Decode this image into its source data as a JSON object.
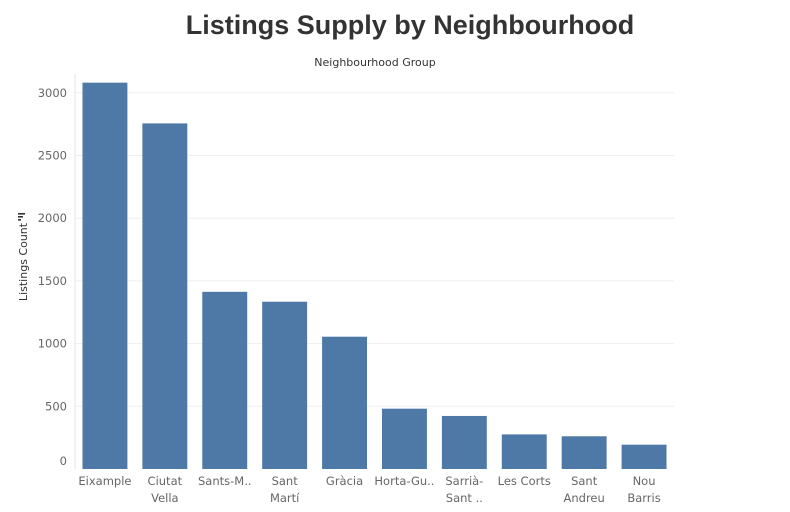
{
  "chart_data": {
    "type": "bar",
    "title": "Listings Supply by Neighbourhood",
    "column_header": "Neighbourhood Group",
    "ylabel": "Listings Count",
    "xlabel": "",
    "ylim": [
      0,
      3150
    ],
    "yticks": [
      0,
      500,
      1000,
      1500,
      2000,
      2500,
      3000
    ],
    "grid": true,
    "bar_color": "#4e79a7",
    "categories": [
      [
        "Eixample"
      ],
      [
        "Ciutat",
        "Vella"
      ],
      [
        "Sants-M.."
      ],
      [
        "Sant",
        "Martí"
      ],
      [
        "Gràcia"
      ],
      [
        "Horta-Gu.."
      ],
      [
        "Sarrià-",
        "Sant .."
      ],
      [
        "Les Corts"
      ],
      [
        "Sant",
        "Andreu"
      ],
      [
        "Nou",
        "Barris"
      ]
    ],
    "values": [
      3081,
      2756,
      1413,
      1334,
      1055,
      481,
      423,
      276,
      261,
      194
    ]
  }
}
